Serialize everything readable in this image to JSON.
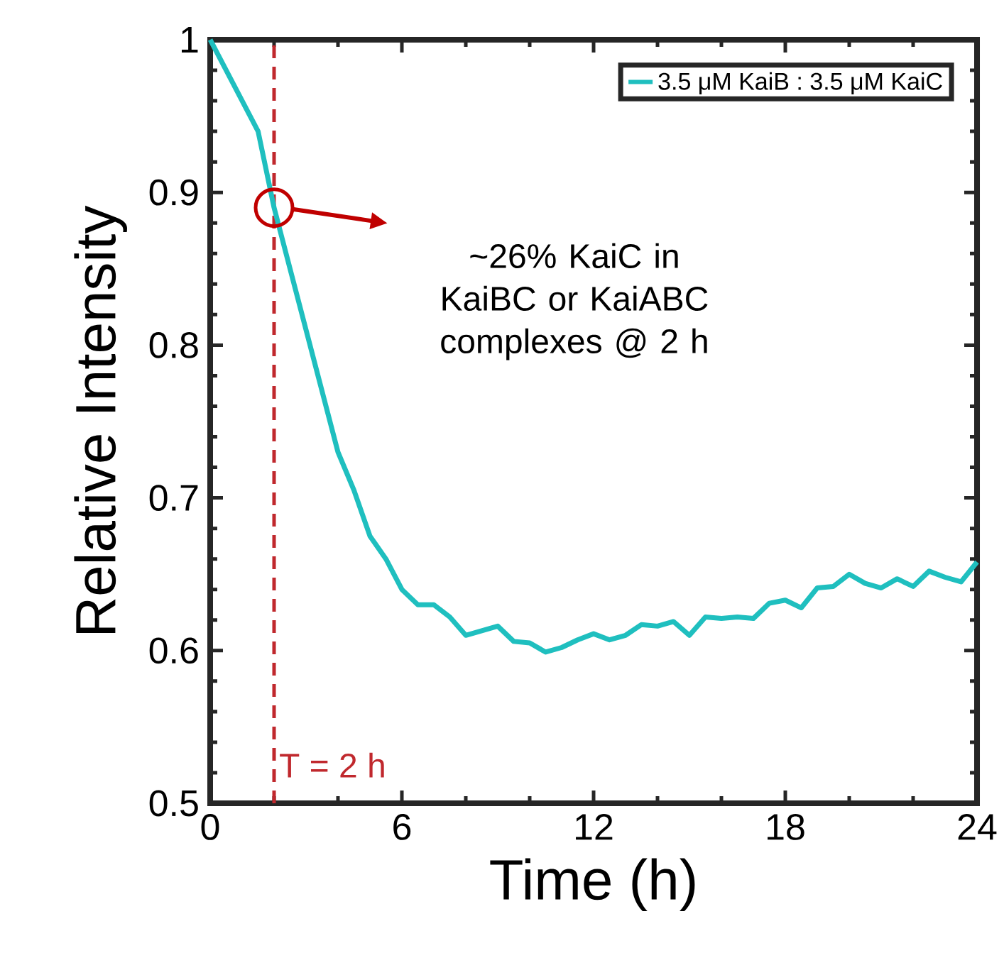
{
  "chart_data": {
    "type": "line",
    "xlabel": "Time (h)",
    "ylabel": "Relative Intensity",
    "x": [
      0,
      0.5,
      1,
      1.5,
      2,
      2.5,
      3,
      3.5,
      4,
      4.5,
      5,
      5.5,
      6,
      6.5,
      7,
      7.5,
      8,
      8.5,
      9,
      9.5,
      10,
      10.5,
      11,
      11.5,
      12,
      12.5,
      13,
      13.5,
      14,
      14.5,
      15,
      15.5,
      16,
      16.5,
      17,
      17.5,
      18,
      18.5,
      19,
      19.5,
      20,
      20.5,
      21,
      21.5,
      22,
      22.5,
      23,
      23.5,
      24
    ],
    "series": [
      {
        "name": "3.5 μM KaiB : 3.5 μM KaiC",
        "color": "#1fbfbf",
        "values": [
          1.0,
          0.98,
          0.96,
          0.94,
          0.89,
          0.85,
          0.81,
          0.77,
          0.73,
          0.705,
          0.675,
          0.66,
          0.64,
          0.63,
          0.63,
          0.622,
          0.61,
          0.613,
          0.616,
          0.606,
          0.605,
          0.599,
          0.602,
          0.607,
          0.611,
          0.607,
          0.61,
          0.617,
          0.616,
          0.619,
          0.61,
          0.622,
          0.621,
          0.622,
          0.621,
          0.631,
          0.633,
          0.628,
          0.641,
          0.642,
          0.65,
          0.644,
          0.641,
          0.647,
          0.642,
          0.652,
          0.648,
          0.645,
          0.658
        ]
      }
    ],
    "xlim": [
      0,
      24
    ],
    "xticks": [
      0,
      6,
      12,
      18,
      24
    ],
    "ylim": [
      0.5,
      1
    ],
    "yticks": [
      0.5,
      0.6,
      0.7,
      0.8,
      0.9,
      1
    ],
    "legend": "top right",
    "ref_lines": [
      {
        "axis": "x",
        "value": 2,
        "label": "T = 2 h",
        "color": "#c0282d",
        "line_style": "dashed"
      }
    ],
    "annotations": [
      "~26% KaiC in KaiBC or KaiABC complexes @ 2 h"
    ]
  }
}
